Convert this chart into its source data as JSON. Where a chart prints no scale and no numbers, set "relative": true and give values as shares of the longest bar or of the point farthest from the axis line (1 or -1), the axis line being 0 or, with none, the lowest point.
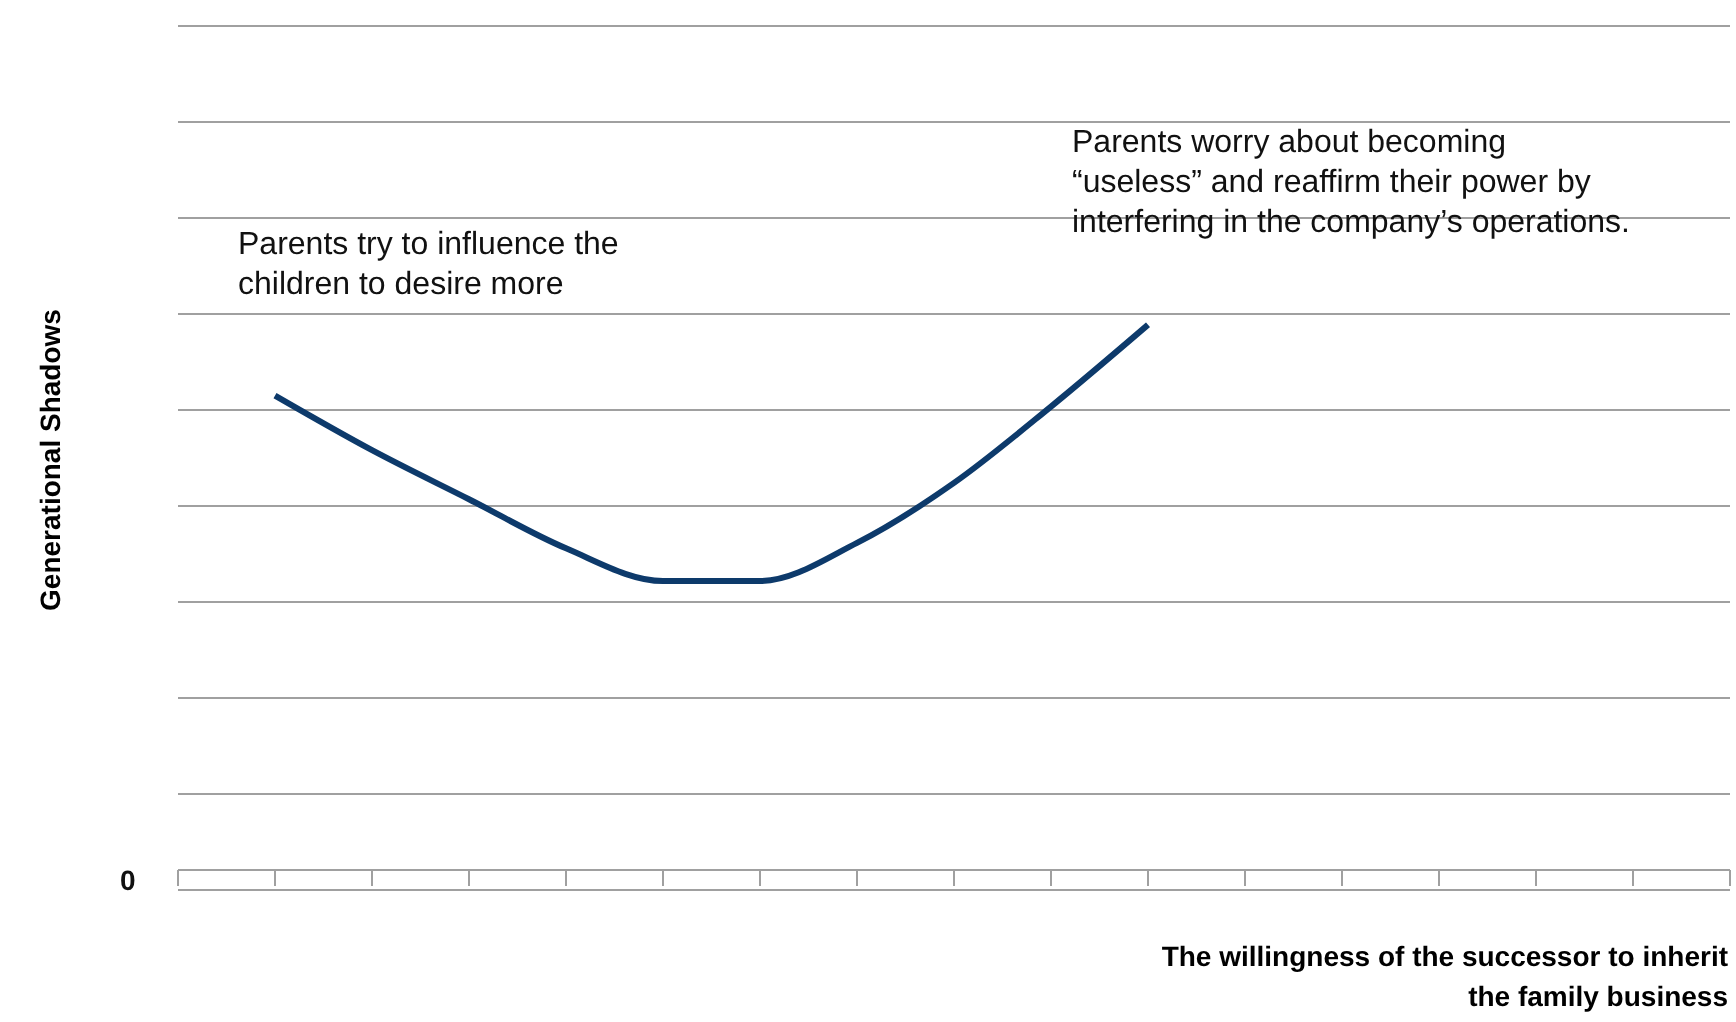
{
  "chart_data": {
    "type": "line",
    "relative": true,
    "ylabel": "Generational Shadows",
    "xlabel": "The willingness of the successor to inherit the family business",
    "categories": [
      null,
      null,
      null,
      null,
      null,
      null,
      null,
      null,
      null,
      null,
      null,
      null,
      null,
      null,
      null,
      null,
      null
    ],
    "series": [
      {
        "color": "#0d3a6b",
        "values": [
          null,
          0.87,
          0.77,
          0.68,
          0.59,
          0.53,
          0.53,
          0.6,
          0.71,
          0.85,
          1.0,
          null,
          null,
          null,
          null,
          null,
          null
        ]
      }
    ],
    "annotations": [
      "Parents try to influence the children to desire more",
      "Parents worry about becoming “useless” and reaffirm their power by interfering in the company’s operations.",
      "0"
    ],
    "grid": "y",
    "marker": "none",
    "line_style": "solid"
  }
}
